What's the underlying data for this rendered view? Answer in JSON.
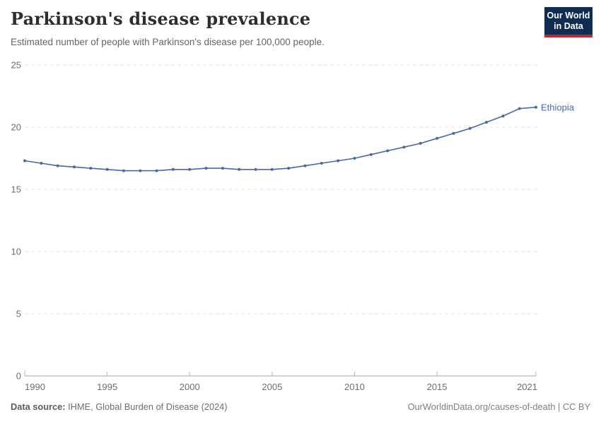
{
  "header": {
    "title": "Parkinson's disease prevalence",
    "subtitle": "Estimated number of people with Parkinson's disease per 100,000 people.",
    "logo": {
      "line1": "Our World",
      "line2": "in Data"
    }
  },
  "chart_data": {
    "type": "line",
    "title": "Parkinson's disease prevalence",
    "subtitle": "Estimated number of people with Parkinson's disease per 100,000 people.",
    "xlabel": "",
    "ylabel": "",
    "xlim": [
      1990,
      2021
    ],
    "ylim": [
      0,
      25
    ],
    "x_ticks": [
      1990,
      1995,
      2000,
      2005,
      2010,
      2015,
      2021
    ],
    "y_ticks": [
      0,
      5,
      10,
      15,
      20,
      25
    ],
    "grid": "horizontal-dashed",
    "legend_position": "end-of-line-label",
    "series": [
      {
        "name": "Ethiopia",
        "color": "#4669a5",
        "x": [
          1990,
          1991,
          1992,
          1993,
          1994,
          1995,
          1996,
          1997,
          1998,
          1999,
          2000,
          2001,
          2002,
          2003,
          2004,
          2005,
          2006,
          2007,
          2008,
          2009,
          2010,
          2011,
          2012,
          2013,
          2014,
          2015,
          2016,
          2017,
          2018,
          2019,
          2020,
          2021
        ],
        "values": [
          17.3,
          17.1,
          16.9,
          16.8,
          16.7,
          16.6,
          16.5,
          16.5,
          16.5,
          16.6,
          16.6,
          16.7,
          16.7,
          16.6,
          16.6,
          16.6,
          16.7,
          16.9,
          17.1,
          17.3,
          17.5,
          17.8,
          18.1,
          18.4,
          18.7,
          19.1,
          19.5,
          19.9,
          20.4,
          20.9,
          21.5,
          21.6
        ]
      }
    ]
  },
  "footer": {
    "source_label": "Data source:",
    "source_text": " IHME, Global Burden of Disease (2024)",
    "rights": "OurWorldinData.org/causes-of-death | CC BY"
  },
  "colors": {
    "line_accent": "#4669a5",
    "logo_navy": "#0f2d52",
    "logo_red": "#c0262e",
    "gridline": "#e3e3e3",
    "axis": "#a8a8a8",
    "tick_label": "#6e6e6e",
    "title_text": "#2e2e2e",
    "subtitle_text": "#61666b"
  }
}
